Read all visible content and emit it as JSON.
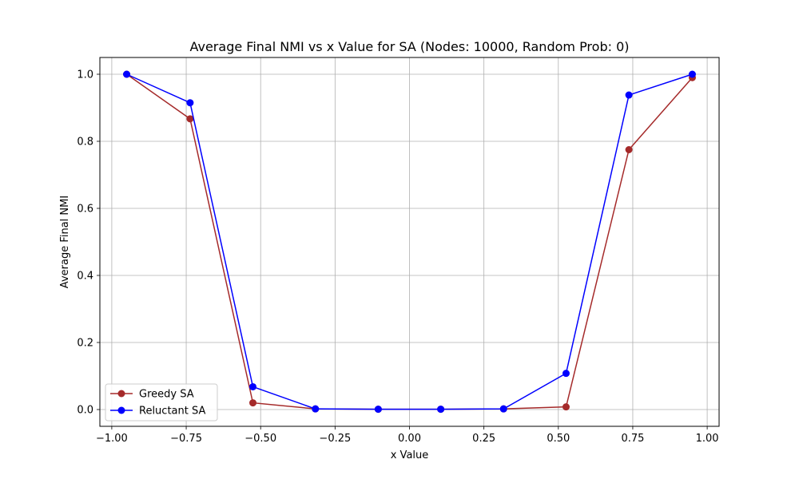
{
  "chart_data": {
    "type": "line",
    "title": "Average Final NMI vs x Value for SA (Nodes: 10000, Random Prob: 0)",
    "xlabel": "x Value",
    "ylabel": "Average Final NMI",
    "xlim": [
      -1.04,
      1.04
    ],
    "ylim": [
      -0.05,
      1.05
    ],
    "xticks": [
      -1.0,
      -0.75,
      -0.5,
      -0.25,
      0.0,
      0.25,
      0.5,
      0.75,
      1.0
    ],
    "xtick_labels": [
      "−1.00",
      "−0.75",
      "−0.50",
      "−0.25",
      "0.00",
      "0.25",
      "0.50",
      "0.75",
      "1.00"
    ],
    "yticks": [
      0.0,
      0.2,
      0.4,
      0.6,
      0.8,
      1.0
    ],
    "ytick_labels": [
      "0.0",
      "0.2",
      "0.4",
      "0.6",
      "0.8",
      "1.0"
    ],
    "grid": true,
    "legend_position": "lower-left",
    "x": [
      -0.95,
      -0.737,
      -0.526,
      -0.316,
      -0.105,
      0.105,
      0.316,
      0.526,
      0.737,
      0.95
    ],
    "series": [
      {
        "name": "Greedy SA",
        "color": "#a52a2a",
        "values": [
          1.0,
          0.867,
          0.02,
          0.002,
          0.001,
          0.001,
          0.002,
          0.008,
          0.775,
          0.99
        ]
      },
      {
        "name": "Reluctant SA",
        "color": "#0000ff",
        "values": [
          1.0,
          0.915,
          0.068,
          0.002,
          0.001,
          0.001,
          0.002,
          0.108,
          0.938,
          1.0
        ]
      }
    ]
  }
}
